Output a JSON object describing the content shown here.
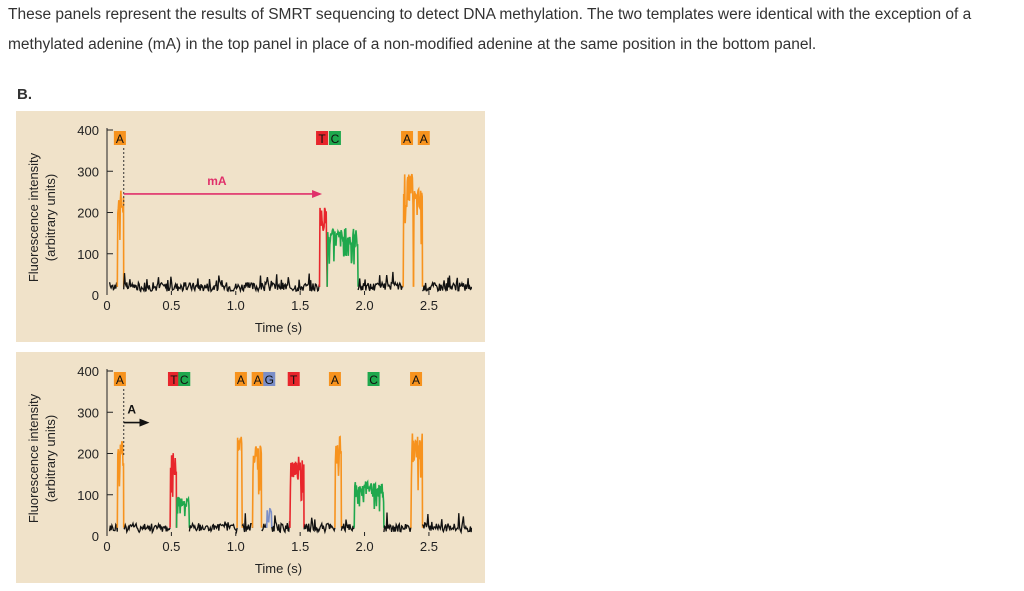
{
  "intro_text": "These panels represent the results of SMRT sequencing to detect DNA methylation. The two templates were identical with the exception of a methylated adenine (mA) in the top panel in place of a non-modified adenine at the same position in the bottom panel.",
  "panel_label": "B.",
  "colors": {
    "panel_bg": "#f0e2c9",
    "A": "#f7931e",
    "T": "#e8262c",
    "C": "#1fa84d",
    "G": "#7b8ec8",
    "baseline": "#111111",
    "annotation_arrow_top": "#e0306a",
    "annotation_arrow_bottom": "#111111"
  },
  "chart_data": [
    {
      "type": "line",
      "name": "top",
      "xlabel": "Time (s)",
      "ylabel": "Fluorescence intensity (arbitrary units)",
      "ylabel_lines": [
        "Fluorescence intensity",
        "(arbitrary units)"
      ],
      "xlim": [
        0,
        2.85
      ],
      "ylim": [
        0,
        400
      ],
      "xticks": [
        0,
        0.5,
        1.0,
        1.5,
        2.0,
        2.5
      ],
      "xtick_labels": [
        "0",
        "0.5",
        "1.0",
        "1.5",
        "2.0",
        "2.5"
      ],
      "yticks": [
        0,
        100,
        200,
        300,
        400
      ],
      "ytick_labels": [
        "0",
        "100",
        "200",
        "300",
        "400"
      ],
      "base_labels": [
        {
          "text": "A",
          "x": 0.1,
          "base": "A"
        },
        {
          "text": "T",
          "x": 1.67,
          "base": "T"
        },
        {
          "text": "C",
          "x": 1.77,
          "base": "C"
        },
        {
          "text": "A",
          "x": 2.33,
          "base": "A"
        },
        {
          "text": "A",
          "x": 2.46,
          "base": "A"
        }
      ],
      "annotation": {
        "text": "mA",
        "x_start": 0.13,
        "x_end": 1.67,
        "y": 245
      },
      "pulses": [
        {
          "base": "A",
          "start": 0.08,
          "end": 0.13,
          "height": 255
        },
        {
          "base": "T",
          "start": 1.65,
          "end": 1.71,
          "height": 210
        },
        {
          "base": "C",
          "start": 1.71,
          "end": 1.95,
          "height": 160
        },
        {
          "base": "A",
          "start": 2.3,
          "end": 2.38,
          "height": 290
        },
        {
          "base": "A",
          "start": 2.38,
          "end": 2.45,
          "height": 260
        }
      ],
      "baseline_level": 20
    },
    {
      "type": "line",
      "name": "bottom",
      "xlabel": "Time (s)",
      "ylabel": "Fluorescence intensity (arbitrary units)",
      "ylabel_lines": [
        "Fluorescence intensity",
        "(arbitrary units)"
      ],
      "xlim": [
        0,
        2.85
      ],
      "ylim": [
        0,
        400
      ],
      "xticks": [
        0,
        0.5,
        1.0,
        1.5,
        2.0,
        2.5
      ],
      "xtick_labels": [
        "0",
        "0.5",
        "1.0",
        "1.5",
        "2.0",
        "2.5"
      ],
      "yticks": [
        0,
        100,
        200,
        300,
        400
      ],
      "ytick_labels": [
        "0",
        "100",
        "200",
        "300",
        "400"
      ],
      "base_labels": [
        {
          "text": "A",
          "x": 0.1,
          "base": "A"
        },
        {
          "text": "T",
          "x": 0.52,
          "base": "T"
        },
        {
          "text": "C",
          "x": 0.6,
          "base": "C"
        },
        {
          "text": "A",
          "x": 1.04,
          "base": "A"
        },
        {
          "text": "A",
          "x": 1.17,
          "base": "A"
        },
        {
          "text": "G",
          "x": 1.26,
          "base": "G"
        },
        {
          "text": "T",
          "x": 1.45,
          "base": "T"
        },
        {
          "text": "A",
          "x": 1.77,
          "base": "A"
        },
        {
          "text": "C",
          "x": 2.07,
          "base": "C"
        },
        {
          "text": "A",
          "x": 2.4,
          "base": "A"
        }
      ],
      "annotation": {
        "text": "A",
        "x_start": 0.13,
        "x_end": 0.33,
        "y": 275
      },
      "pulses": [
        {
          "base": "A",
          "start": 0.08,
          "end": 0.13,
          "height": 230
        },
        {
          "base": "T",
          "start": 0.49,
          "end": 0.54,
          "height": 200
        },
        {
          "base": "C",
          "start": 0.54,
          "end": 0.64,
          "height": 95
        },
        {
          "base": "A",
          "start": 1.01,
          "end": 1.05,
          "height": 250
        },
        {
          "base": "A",
          "start": 1.13,
          "end": 1.2,
          "height": 215
        },
        {
          "base": "G",
          "start": 1.24,
          "end": 1.28,
          "height": 70
        },
        {
          "base": "T",
          "start": 1.42,
          "end": 1.53,
          "height": 190
        },
        {
          "base": "A",
          "start": 1.77,
          "end": 1.82,
          "height": 240
        },
        {
          "base": "C",
          "start": 1.92,
          "end": 2.15,
          "height": 130
        },
        {
          "base": "A",
          "start": 2.36,
          "end": 2.45,
          "height": 245
        }
      ],
      "baseline_level": 20
    }
  ]
}
